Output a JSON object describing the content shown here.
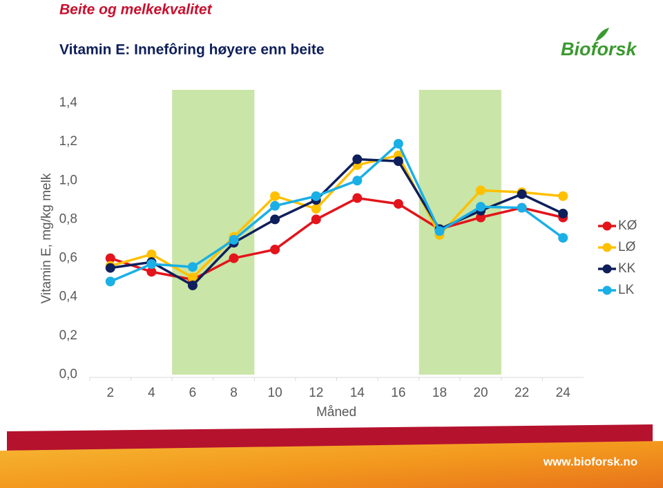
{
  "header": {
    "section": "Beite og melkekvalitet",
    "title": "Vitamin E: Innefôring høyere enn beite"
  },
  "logo": {
    "text": "Bioforsk"
  },
  "footer": {
    "url": "www.bioforsk.no"
  },
  "chart_data": {
    "type": "line",
    "x_label": "Måned",
    "y_label": "Vitamin E, mg/kg melk",
    "x": [
      2,
      4,
      6,
      8,
      10,
      12,
      14,
      16,
      18,
      20,
      22,
      24
    ],
    "xlim": [
      1,
      25
    ],
    "xticks": [
      2,
      4,
      6,
      8,
      10,
      12,
      14,
      16,
      18,
      20,
      22,
      24
    ],
    "ylim": [
      0,
      1.4
    ],
    "yticks": [
      {
        "value": 0,
        "label": "0,0"
      },
      {
        "value": 0.2,
        "label": "0,2"
      },
      {
        "value": 0.4,
        "label": "0,4"
      },
      {
        "value": 0.6,
        "label": "0,6"
      },
      {
        "value": 0.8,
        "label": "0,8"
      },
      {
        "value": 1.0,
        "label": "1,0"
      },
      {
        "value": 1.2,
        "label": "1,2"
      },
      {
        "value": 1.4,
        "label": "1,4"
      }
    ],
    "highlight_spans": [
      [
        5,
        9
      ],
      [
        17,
        21
      ]
    ],
    "highlight_color": "#c9e5a7",
    "legend": "right",
    "series": [
      {
        "name": "KØ",
        "color": "#e3141b",
        "values": [
          0.6,
          0.53,
          0.49,
          0.6,
          0.645,
          0.8,
          0.91,
          0.88,
          0.75,
          0.81,
          0.86,
          0.81
        ]
      },
      {
        "name": "LØ",
        "color": "#ffc000",
        "values": [
          0.56,
          0.62,
          0.5,
          0.71,
          0.92,
          0.855,
          1.08,
          1.13,
          0.72,
          0.95,
          0.94,
          0.92
        ]
      },
      {
        "name": "KK",
        "color": "#0e1f5b",
        "values": [
          0.55,
          0.58,
          0.46,
          0.68,
          0.8,
          0.9,
          1.11,
          1.1,
          0.75,
          0.845,
          0.93,
          0.83
        ]
      },
      {
        "name": "LK",
        "color": "#1aafe6",
        "values": [
          0.48,
          0.57,
          0.555,
          0.695,
          0.87,
          0.92,
          1.0,
          1.19,
          0.74,
          0.865,
          0.86,
          0.705
        ]
      }
    ]
  }
}
